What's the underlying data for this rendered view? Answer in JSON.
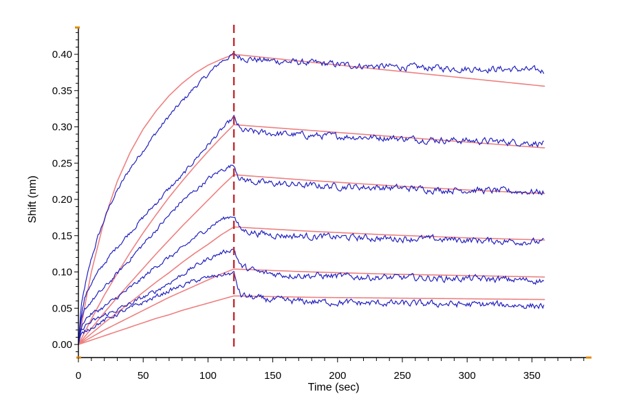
{
  "chart_data": {
    "type": "line",
    "title": "",
    "xlabel": "Time (sec)",
    "ylabel": "Shift (nm)",
    "xlim": [
      0,
      395
    ],
    "ylim": [
      -0.02,
      0.44
    ],
    "x_ticks": [
      0,
      50,
      100,
      150,
      200,
      250,
      300,
      350
    ],
    "x_tick_labels": [
      "0",
      "50",
      "100",
      "150",
      "200",
      "250",
      "300",
      "350"
    ],
    "y_ticks": [
      0.0,
      0.05,
      0.1,
      0.15,
      0.2,
      0.25,
      0.3,
      0.35,
      0.4
    ],
    "y_tick_labels": [
      "0.00",
      "0.05",
      "0.10",
      "0.15",
      "0.20",
      "0.25",
      "0.30",
      "0.35",
      "0.40"
    ],
    "grid": false,
    "legend": "none",
    "vline": {
      "x": 120,
      "color": "#c0282d",
      "style": "dashed"
    },
    "colors": {
      "measured": "#1f1fbf",
      "fit": "#ee8080",
      "axis": "#000000",
      "axis_corner": "#e08a00"
    },
    "series": [
      {
        "x": [
          0,
          2,
          5,
          10,
          15,
          20,
          25,
          30,
          40,
          50,
          60,
          70,
          80,
          90,
          100,
          110,
          120,
          125,
          140,
          160,
          180,
          200,
          220,
          240,
          260,
          280,
          300,
          320,
          340,
          360
        ],
        "measured": [
          0.0,
          0.05,
          0.08,
          0.118,
          0.148,
          0.172,
          0.195,
          0.212,
          0.243,
          0.268,
          0.292,
          0.315,
          0.335,
          0.355,
          0.372,
          0.39,
          0.4,
          0.396,
          0.392,
          0.39,
          0.388,
          0.386,
          0.384,
          0.383,
          0.382,
          0.381,
          0.38,
          0.38,
          0.379,
          0.377
        ],
        "fit_x": [
          0,
          5,
          10,
          20,
          30,
          40,
          50,
          60,
          70,
          80,
          90,
          100,
          110,
          120,
          180,
          240,
          300,
          360
        ],
        "fit": [
          0.0,
          0.054,
          0.1,
          0.172,
          0.225,
          0.265,
          0.297,
          0.322,
          0.343,
          0.36,
          0.374,
          0.385,
          0.393,
          0.4,
          0.389,
          0.378,
          0.367,
          0.356
        ]
      },
      {
        "x": [
          0,
          2,
          5,
          10,
          20,
          30,
          40,
          50,
          60,
          70,
          80,
          90,
          100,
          110,
          120,
          125,
          140,
          160,
          180,
          200,
          220,
          240,
          260,
          280,
          300,
          320,
          340,
          360
        ],
        "measured": [
          0.0,
          0.04,
          0.065,
          0.085,
          0.112,
          0.135,
          0.155,
          0.175,
          0.195,
          0.215,
          0.232,
          0.255,
          0.275,
          0.295,
          0.313,
          0.295,
          0.292,
          0.29,
          0.288,
          0.287,
          0.286,
          0.285,
          0.283,
          0.282,
          0.281,
          0.28,
          0.279,
          0.277
        ],
        "fit_x": [
          0,
          10,
          20,
          30,
          40,
          50,
          60,
          70,
          80,
          90,
          100,
          110,
          120,
          180,
          240,
          300,
          360
        ],
        "fit": [
          0.0,
          0.035,
          0.068,
          0.098,
          0.127,
          0.154,
          0.179,
          0.203,
          0.225,
          0.246,
          0.266,
          0.285,
          0.303,
          0.295,
          0.287,
          0.279,
          0.271
        ]
      },
      {
        "x": [
          0,
          2,
          5,
          10,
          20,
          30,
          40,
          50,
          60,
          70,
          80,
          90,
          100,
          110,
          120,
          125,
          140,
          160,
          180,
          200,
          220,
          240,
          260,
          280,
          300,
          320,
          340,
          360
        ],
        "measured": [
          0.0,
          0.03,
          0.048,
          0.06,
          0.078,
          0.098,
          0.118,
          0.138,
          0.158,
          0.178,
          0.198,
          0.212,
          0.228,
          0.24,
          0.248,
          0.228,
          0.223,
          0.221,
          0.219,
          0.218,
          0.217,
          0.216,
          0.215,
          0.213,
          0.213,
          0.212,
          0.211,
          0.21
        ],
        "fit_x": [
          0,
          10,
          20,
          30,
          40,
          50,
          60,
          70,
          80,
          90,
          100,
          110,
          120,
          180,
          240,
          300,
          360
        ],
        "fit": [
          0.0,
          0.022,
          0.044,
          0.065,
          0.085,
          0.105,
          0.125,
          0.144,
          0.163,
          0.181,
          0.199,
          0.217,
          0.234,
          0.226,
          0.219,
          0.213,
          0.208
        ]
      },
      {
        "x": [
          0,
          2,
          5,
          10,
          20,
          30,
          40,
          50,
          60,
          70,
          80,
          90,
          100,
          110,
          120,
          125,
          140,
          160,
          180,
          200,
          220,
          240,
          260,
          280,
          300,
          320,
          340,
          360
        ],
        "measured": [
          0.0,
          0.022,
          0.035,
          0.042,
          0.052,
          0.065,
          0.078,
          0.092,
          0.108,
          0.12,
          0.132,
          0.148,
          0.16,
          0.172,
          0.178,
          0.158,
          0.153,
          0.15,
          0.149,
          0.148,
          0.147,
          0.146,
          0.146,
          0.145,
          0.144,
          0.143,
          0.142,
          0.141
        ],
        "fit_x": [
          0,
          10,
          20,
          30,
          40,
          50,
          60,
          70,
          80,
          90,
          100,
          110,
          120,
          180,
          240,
          300,
          360
        ],
        "fit": [
          0.0,
          0.015,
          0.03,
          0.044,
          0.058,
          0.072,
          0.086,
          0.099,
          0.113,
          0.126,
          0.138,
          0.151,
          0.162,
          0.156,
          0.151,
          0.147,
          0.144
        ]
      },
      {
        "x": [
          0,
          2,
          5,
          10,
          20,
          30,
          40,
          50,
          60,
          70,
          80,
          90,
          100,
          110,
          120,
          125,
          140,
          160,
          180,
          200,
          220,
          240,
          260,
          280,
          300,
          320,
          340,
          360
        ],
        "measured": [
          0.0,
          0.018,
          0.026,
          0.031,
          0.04,
          0.048,
          0.056,
          0.065,
          0.074,
          0.085,
          0.096,
          0.108,
          0.118,
          0.126,
          0.132,
          0.108,
          0.099,
          0.096,
          0.095,
          0.094,
          0.093,
          0.092,
          0.092,
          0.091,
          0.091,
          0.09,
          0.089,
          0.088
        ],
        "fit_x": [
          0,
          10,
          20,
          30,
          40,
          50,
          60,
          70,
          80,
          90,
          100,
          110,
          120,
          180,
          240,
          300,
          360
        ],
        "fit": [
          0.0,
          0.01,
          0.02,
          0.029,
          0.038,
          0.047,
          0.056,
          0.065,
          0.073,
          0.081,
          0.089,
          0.097,
          0.104,
          0.1,
          0.097,
          0.095,
          0.093
        ]
      },
      {
        "x": [
          0,
          2,
          5,
          10,
          20,
          30,
          40,
          50,
          60,
          70,
          80,
          90,
          100,
          110,
          120,
          125,
          140,
          160,
          180,
          200,
          220,
          240,
          260,
          280,
          300,
          320,
          340,
          360
        ],
        "measured": [
          0.0,
          0.012,
          0.018,
          0.024,
          0.033,
          0.042,
          0.05,
          0.058,
          0.066,
          0.074,
          0.081,
          0.088,
          0.092,
          0.096,
          0.098,
          0.068,
          0.063,
          0.06,
          0.059,
          0.058,
          0.057,
          0.057,
          0.056,
          0.056,
          0.055,
          0.055,
          0.054,
          0.053
        ],
        "fit_x": [
          0,
          10,
          20,
          30,
          40,
          50,
          60,
          70,
          80,
          90,
          100,
          110,
          120,
          180,
          240,
          300,
          360
        ],
        "fit": [
          0.0,
          0.006,
          0.012,
          0.018,
          0.024,
          0.03,
          0.036,
          0.041,
          0.047,
          0.052,
          0.057,
          0.062,
          0.067,
          0.065,
          0.064,
          0.063,
          0.062
        ]
      }
    ]
  }
}
